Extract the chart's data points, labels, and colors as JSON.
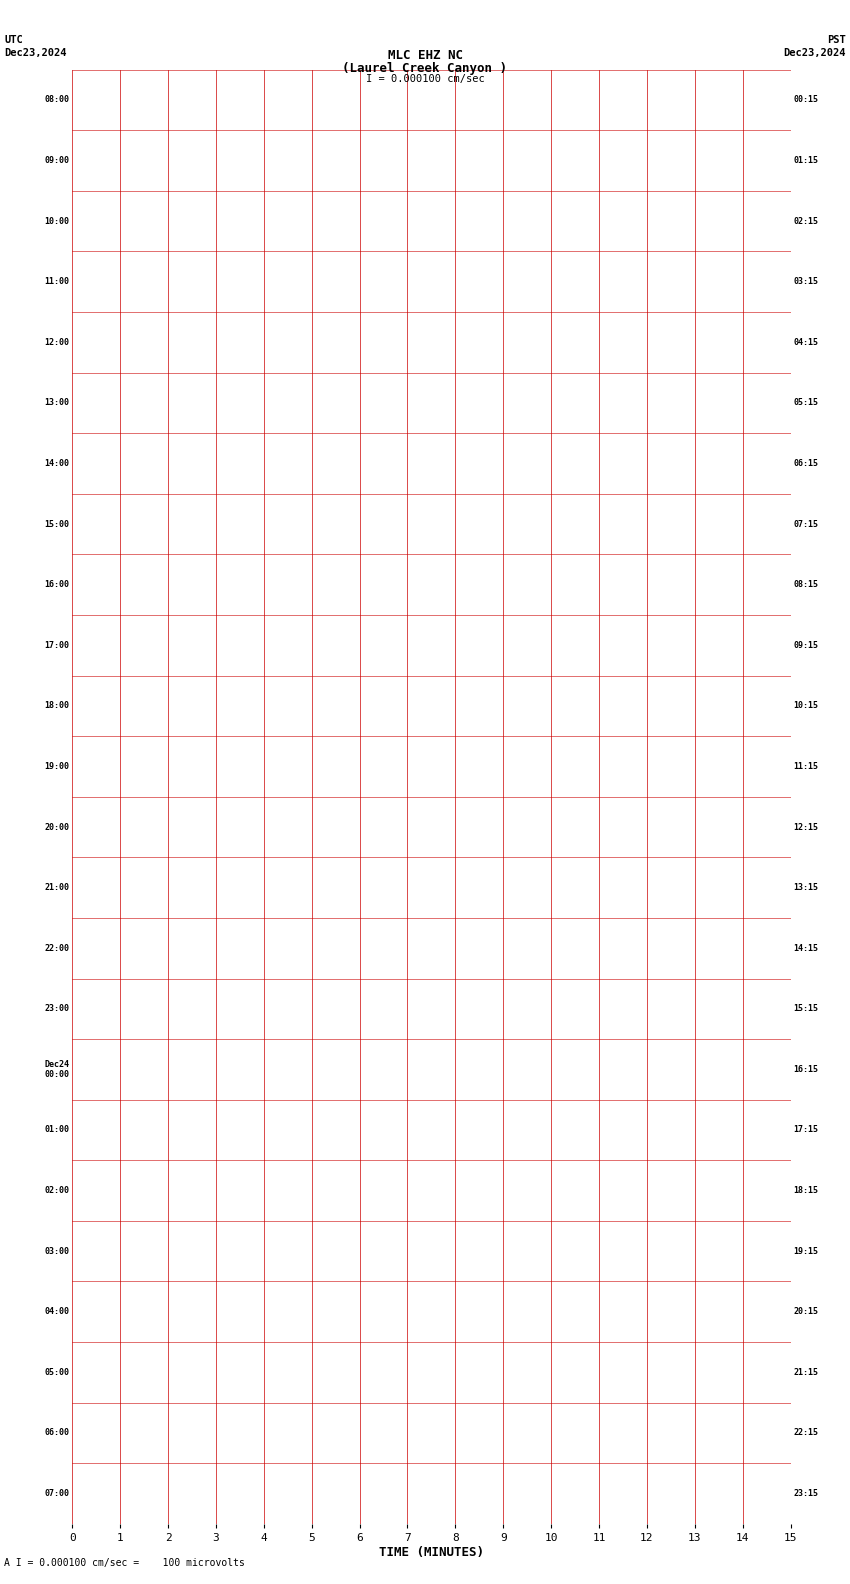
{
  "title_line1": "MLC EHZ NC",
  "title_line2": "(Laurel Creek Canyon )",
  "scale_text": "I = 0.000100 cm/sec",
  "left_header_line1": "UTC",
  "left_header_line2": "Dec23,2024",
  "right_header_line1": "PST",
  "right_header_line2": "Dec23,2024",
  "bottom_note": "A I = 0.000100 cm/sec =    100 microvolts",
  "xlabel": "TIME (MINUTES)",
  "x_ticks": [
    0,
    1,
    2,
    3,
    4,
    5,
    6,
    7,
    8,
    9,
    10,
    11,
    12,
    13,
    14,
    15
  ],
  "bg_color": "#ffffff",
  "grid_color": "#ff0000",
  "trace_colors": [
    "black",
    "red",
    "blue",
    "green"
  ],
  "left_times": [
    "08:00",
    "09:00",
    "10:00",
    "11:00",
    "12:00",
    "13:00",
    "14:00",
    "15:00",
    "16:00",
    "17:00",
    "18:00",
    "19:00",
    "20:00",
    "21:00",
    "22:00",
    "23:00",
    "Dec24\n00:00",
    "01:00",
    "02:00",
    "03:00",
    "04:00",
    "05:00",
    "06:00",
    "07:00"
  ],
  "right_times": [
    "00:15",
    "01:15",
    "02:15",
    "03:15",
    "04:15",
    "05:15",
    "06:15",
    "07:15",
    "08:15",
    "09:15",
    "10:15",
    "11:15",
    "12:15",
    "13:15",
    "14:15",
    "15:15",
    "16:15",
    "17:15",
    "18:15",
    "19:15",
    "20:15",
    "21:15",
    "22:15",
    "23:15"
  ],
  "n_rows": 24,
  "fig_width": 8.5,
  "fig_height": 15.84,
  "dpi": 100
}
